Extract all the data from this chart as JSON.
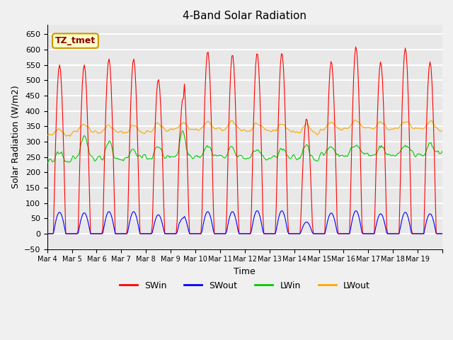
{
  "title": "4-Band Solar Radiation",
  "xlabel": "Time",
  "ylabel": "Solar Radiation (W/m2)",
  "annotation": "TZ_tmet",
  "ylim": [
    -50,
    680
  ],
  "legend": [
    "SWin",
    "SWout",
    "LWin",
    "LWout"
  ],
  "colors": {
    "SWin": "#ff0000",
    "SWout": "#0000ff",
    "LWin": "#00cc00",
    "LWout": "#ffa500"
  },
  "background_color": "#e8e8e8",
  "grid_color": "#ffffff",
  "xtick_labels": [
    "Mar 4",
    "Mar 5",
    "Mar 6",
    "Mar 7",
    "Mar 8",
    "Mar 9",
    "Mar 10",
    "Mar 11",
    "Mar 12",
    "Mar 13",
    "Mar 14",
    "Mar 15",
    "Mar 16",
    "Mar 17",
    "Mar 18",
    "Mar 19"
  ],
  "num_days": 16
}
